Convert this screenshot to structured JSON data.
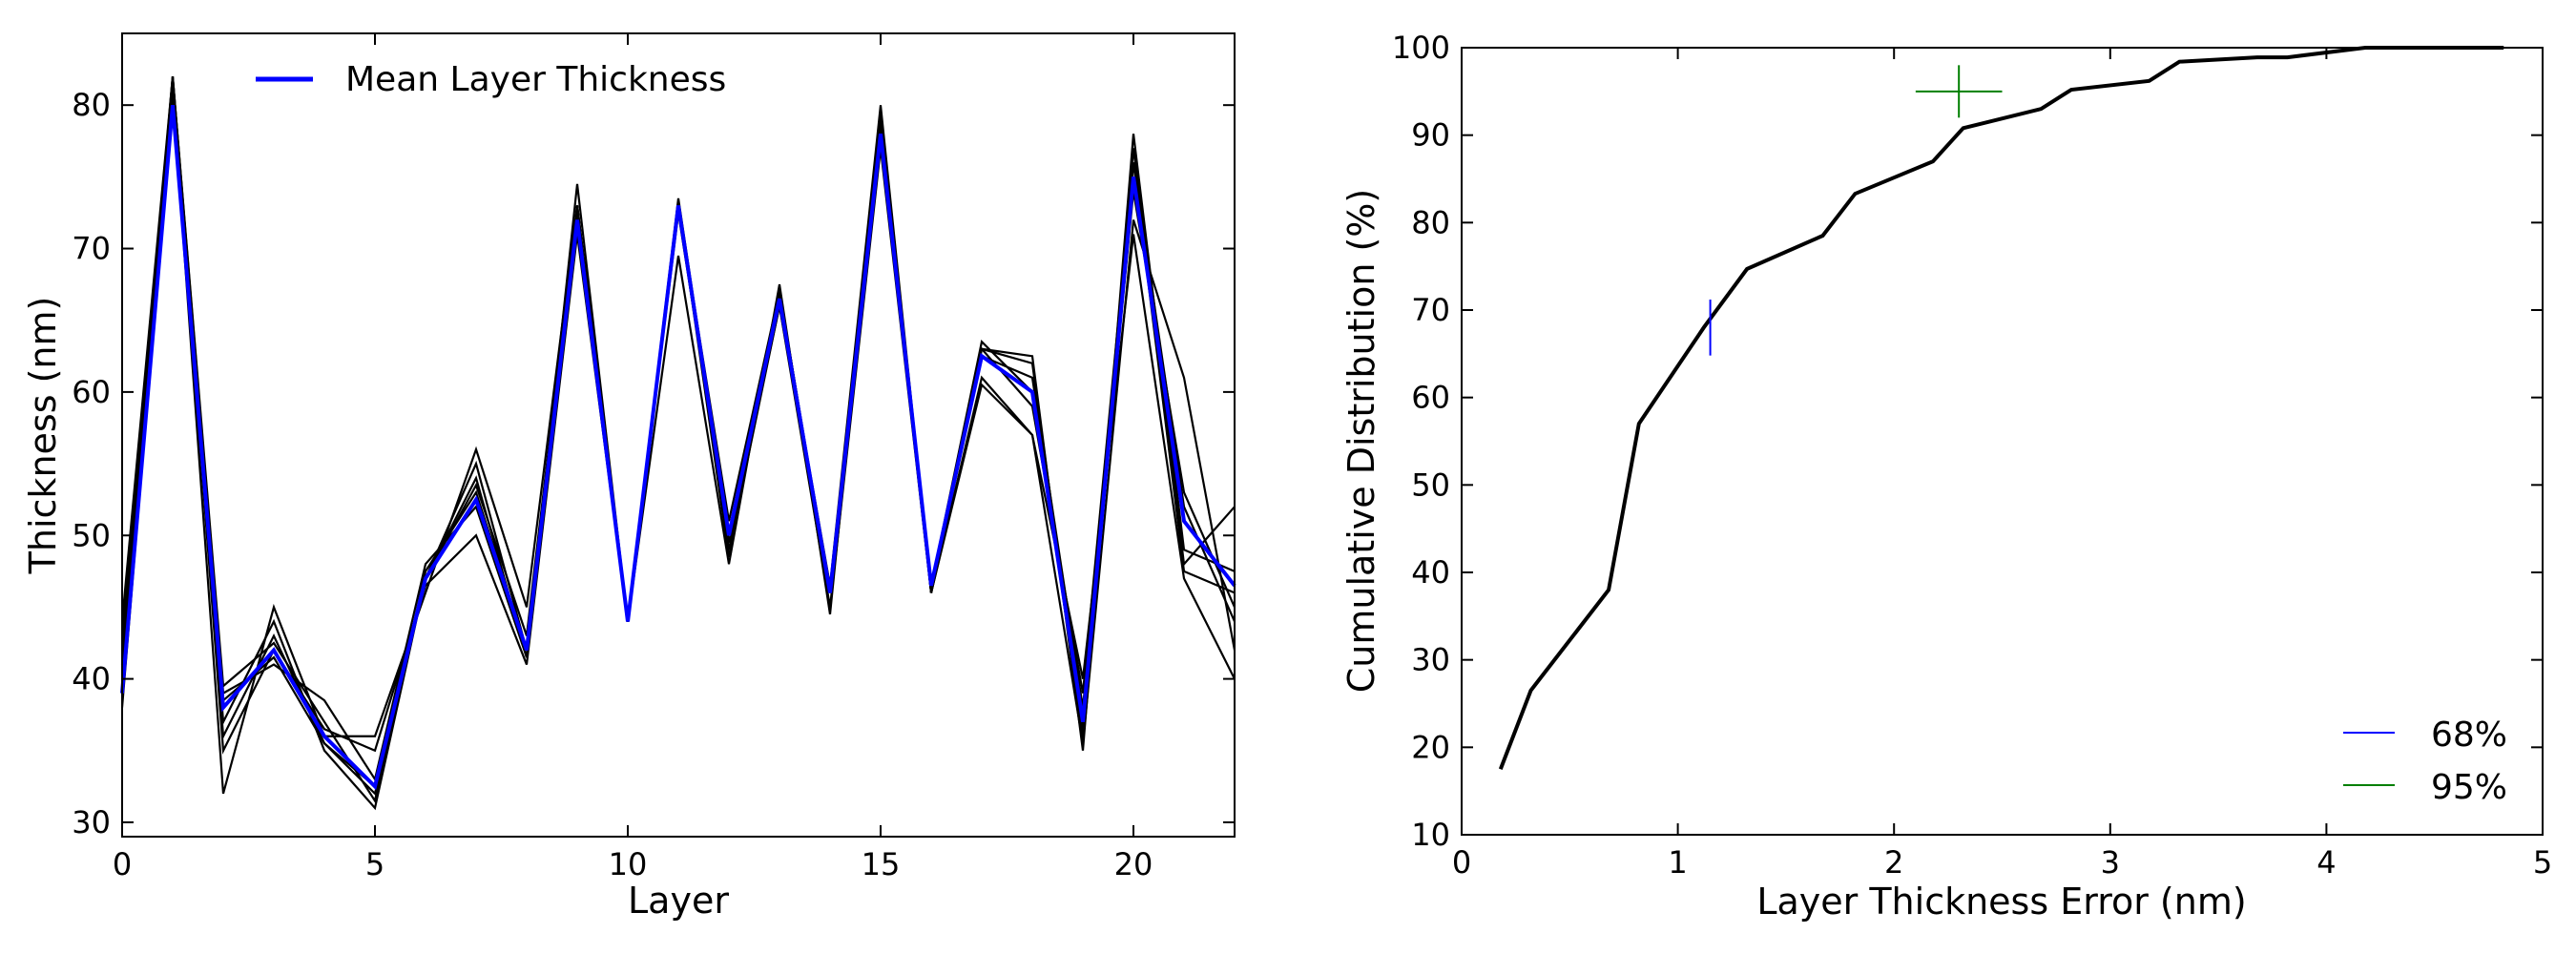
{
  "chart_data": [
    {
      "type": "line",
      "title": "",
      "xlabel": "Layer",
      "ylabel": "Thickness (nm)",
      "xlim": [
        0,
        22
      ],
      "ylim": [
        29,
        85
      ],
      "xticks": [
        0,
        5,
        10,
        15,
        20
      ],
      "yticks": [
        30,
        40,
        50,
        60,
        70,
        80
      ],
      "grid": false,
      "legend_position": "top-left",
      "mean_series": {
        "name": "Mean Layer Thickness",
        "color": "#0000ff",
        "x": [
          0,
          1,
          2,
          3,
          4,
          5,
          6,
          7,
          8,
          9,
          10,
          11,
          12,
          13,
          14,
          15,
          16,
          17,
          18,
          19,
          20,
          21,
          22
        ],
        "values": [
          39,
          80,
          38,
          42,
          36,
          32.5,
          47,
          52.5,
          42,
          72,
          44,
          73,
          50,
          66.5,
          46,
          78,
          46.5,
          62.5,
          60,
          37,
          75,
          51,
          46.5
        ]
      },
      "samples": [
        {
          "color": "#000000",
          "values": [
            41,
            82,
            39.5,
            42.5,
            37,
            31.5,
            47.5,
            53,
            42,
            73,
            44,
            73,
            51,
            67,
            46,
            79,
            46,
            63,
            62,
            36,
            77,
            48,
            52
          ]
        },
        {
          "color": "#000000",
          "values": [
            43,
            81.5,
            37,
            44,
            35,
            31,
            47,
            54,
            41.5,
            72,
            44,
            73,
            49.5,
            66,
            45,
            77,
            46,
            62.5,
            61,
            38,
            74,
            53,
            45
          ]
        },
        {
          "color": "#000000",
          "values": [
            40,
            81,
            36,
            43,
            35.5,
            32,
            47,
            55,
            42,
            72.5,
            44,
            72.5,
            50,
            67,
            46,
            78,
            46.5,
            63.5,
            60,
            36.5,
            76,
            52,
            44
          ]
        },
        {
          "color": "#000000",
          "values": [
            38,
            81,
            32,
            45,
            36,
            36,
            46,
            56,
            45,
            73,
            44,
            73.5,
            50,
            66.5,
            46.5,
            80,
            46,
            61,
            57,
            35.5,
            72,
            61,
            42
          ]
        },
        {
          "color": "#000000",
          "values": [
            42,
            82,
            39,
            41,
            38.5,
            33,
            48,
            52,
            41.5,
            74.5,
            44,
            69.5,
            48,
            67.5,
            44.5,
            79.5,
            46,
            60.5,
            57,
            40,
            71,
            47,
            40
          ]
        },
        {
          "color": "#000000",
          "values": [
            41,
            81.5,
            35,
            42,
            36.5,
            35,
            46.5,
            50,
            41,
            71,
            44,
            73,
            49,
            66,
            46,
            78.5,
            46,
            63,
            59,
            39,
            76,
            47.5,
            46
          ]
        },
        {
          "color": "#000000",
          "values": [
            44,
            82,
            38.5,
            41.5,
            35.5,
            32.5,
            47,
            53.5,
            43,
            73,
            44,
            73,
            48.5,
            67,
            46,
            77.5,
            46,
            63,
            62.5,
            35,
            78,
            49,
            47.5
          ]
        }
      ]
    },
    {
      "type": "line",
      "title": "",
      "xlabel": "Layer Thickness Error (nm)",
      "ylabel": "Cumulative Distribution (%)",
      "xlim": [
        0,
        5
      ],
      "ylim": [
        10,
        100
      ],
      "xticks": [
        0,
        1,
        2,
        3,
        4,
        5
      ],
      "yticks": [
        10,
        20,
        30,
        40,
        50,
        60,
        70,
        80,
        90,
        100
      ],
      "grid": false,
      "legend_position": "bottom-right",
      "cdf": {
        "color": "#000000",
        "x": [
          0.18,
          0.32,
          0.68,
          0.82,
          1.12,
          1.32,
          1.67,
          1.82,
          2.18,
          2.32,
          2.68,
          2.82,
          3.18,
          3.32,
          3.68,
          3.82,
          4.18,
          4.82
        ],
        "values": [
          17.5,
          26.5,
          38,
          57,
          68,
          74.7,
          78.5,
          83.3,
          87,
          90.8,
          93,
          95.2,
          96.2,
          98.4,
          98.9,
          98.9,
          100,
          100
        ]
      },
      "markers": [
        {
          "name": "68%",
          "color": "#0000ff",
          "x": 1.15,
          "y": 68,
          "half_width": 0,
          "half_height": 3.2
        },
        {
          "name": "95%",
          "color": "#007f00",
          "x": 2.3,
          "y": 95,
          "half_width": 0.2,
          "half_height": 3.0
        }
      ]
    }
  ]
}
